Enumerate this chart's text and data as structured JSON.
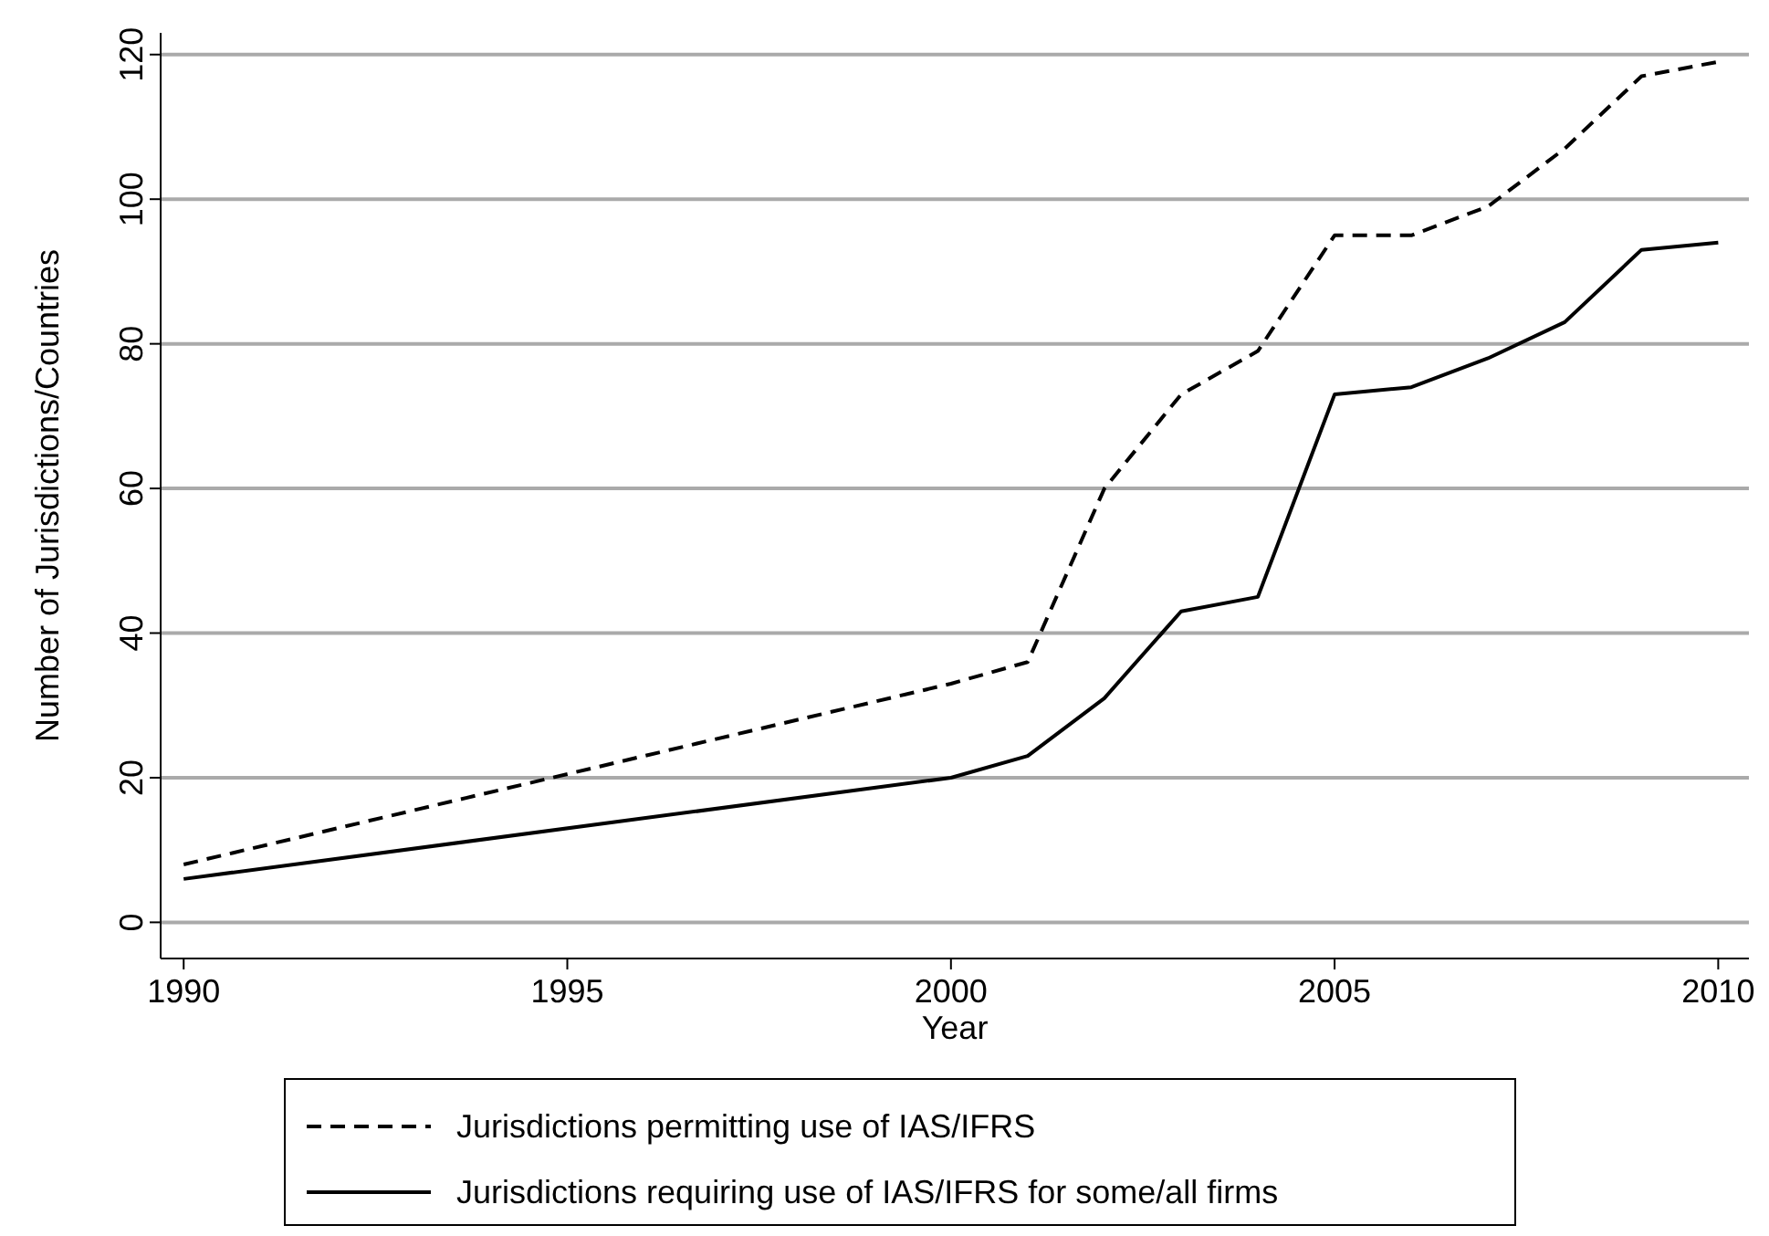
{
  "chart_data": {
    "type": "line",
    "xlabel": "Year",
    "ylabel": "Number of Jurisdictions/Countries",
    "xlim": [
      1989.7,
      2010.4
    ],
    "xticks": [
      1990,
      1995,
      2000,
      2005,
      2010
    ],
    "ylim": [
      -5,
      123
    ],
    "yticks": [
      0,
      20,
      40,
      60,
      80,
      100,
      120
    ],
    "grid": "y",
    "legend": "bottom",
    "marker": "none",
    "series": [
      {
        "name": "Jurisdictions permitting use of IAS/IFRS",
        "color": "#000000",
        "line_style": "dashed",
        "x": [
          1990,
          2000,
          2001,
          2002,
          2003,
          2004,
          2005,
          2006,
          2007,
          2008,
          2009,
          2010
        ],
        "values": [
          8,
          33,
          36,
          60,
          73,
          79,
          95,
          95,
          99,
          107,
          117,
          119
        ]
      },
      {
        "name": "Jurisdictions requiring use of IAS/IFRS for some/all firms",
        "color": "#000000",
        "line_style": "solid",
        "x": [
          1990,
          2000,
          2001,
          2002,
          2003,
          2004,
          2005,
          2006,
          2007,
          2008,
          2009,
          2010
        ],
        "values": [
          6,
          20,
          23,
          31,
          43,
          45,
          73,
          74,
          78,
          83,
          93,
          94
        ]
      }
    ]
  }
}
